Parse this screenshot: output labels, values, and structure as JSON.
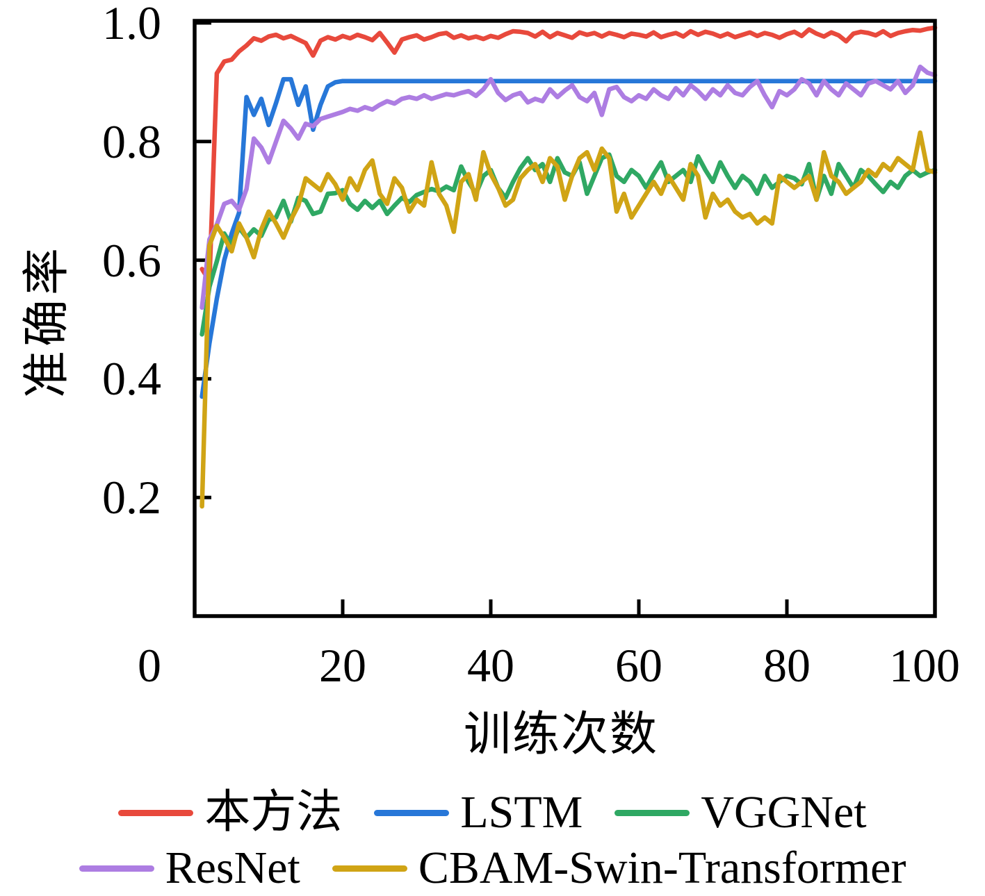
{
  "figure": {
    "background": "#ffffff",
    "axis_color": "#000000",
    "text_color": "#000000"
  },
  "chart_data": {
    "type": "line",
    "title": "",
    "xlabel": "训练次数",
    "ylabel": "准确率",
    "xlim": [
      0,
      100
    ],
    "ylim": [
      0,
      1.0
    ],
    "grid": false,
    "legend_position": "below-chart, two rows, no frame",
    "x_ticks": [
      0,
      20,
      40,
      60,
      80,
      100
    ],
    "x_tick_labels": [
      "0",
      "20",
      "40",
      "60",
      "80",
      "100"
    ],
    "x_tick_label_dx": [
      -65,
      0,
      0,
      0,
      0,
      -15
    ],
    "y_ticks": [
      0.2,
      0.4,
      0.6,
      0.8,
      1.0
    ],
    "y_tick_labels": [
      "0.2",
      "0.4",
      "0.6",
      "0.8",
      "1.0"
    ],
    "x_start": 1,
    "x_step": 1,
    "series": [
      {
        "name": "本方法",
        "color": "#e8493c",
        "values": [
          0.585,
          0.565,
          0.915,
          0.935,
          0.938,
          0.952,
          0.962,
          0.974,
          0.97,
          0.977,
          0.98,
          0.974,
          0.978,
          0.972,
          0.966,
          0.945,
          0.97,
          0.976,
          0.972,
          0.978,
          0.974,
          0.98,
          0.976,
          0.971,
          0.983,
          0.967,
          0.95,
          0.972,
          0.976,
          0.979,
          0.972,
          0.976,
          0.981,
          0.983,
          0.975,
          0.979,
          0.974,
          0.977,
          0.973,
          0.978,
          0.975,
          0.981,
          0.986,
          0.985,
          0.983,
          0.977,
          0.985,
          0.976,
          0.983,
          0.979,
          0.975,
          0.984,
          0.98,
          0.983,
          0.977,
          0.983,
          0.98,
          0.976,
          0.982,
          0.98,
          0.977,
          0.984,
          0.976,
          0.98,
          0.983,
          0.977,
          0.986,
          0.98,
          0.985,
          0.982,
          0.977,
          0.982,
          0.976,
          0.98,
          0.984,
          0.978,
          0.983,
          0.98,
          0.975,
          0.981,
          0.985,
          0.978,
          0.989,
          0.982,
          0.977,
          0.984,
          0.979,
          0.969,
          0.982,
          0.985,
          0.983,
          0.979,
          0.986,
          0.978,
          0.983,
          0.986,
          0.988,
          0.987,
          0.99,
          0.992
        ]
      },
      {
        "name": "LSTM",
        "color": "#2777d8",
        "values": [
          0.37,
          0.46,
          0.535,
          0.6,
          0.645,
          0.68,
          0.875,
          0.845,
          0.872,
          0.828,
          0.865,
          0.905,
          0.905,
          0.862,
          0.893,
          0.82,
          0.862,
          0.893,
          0.9,
          0.902,
          0.902,
          0.902,
          0.902,
          0.902,
          0.902,
          0.902,
          0.902,
          0.902,
          0.902,
          0.902,
          0.902,
          0.902,
          0.902,
          0.902,
          0.902,
          0.902,
          0.902,
          0.902,
          0.902,
          0.902,
          0.902,
          0.902,
          0.902,
          0.902,
          0.902,
          0.902,
          0.902,
          0.902,
          0.902,
          0.902,
          0.902,
          0.902,
          0.902,
          0.902,
          0.902,
          0.902,
          0.902,
          0.902,
          0.902,
          0.902,
          0.902,
          0.902,
          0.902,
          0.902,
          0.902,
          0.902,
          0.902,
          0.902,
          0.902,
          0.902,
          0.902,
          0.902,
          0.902,
          0.902,
          0.902,
          0.902,
          0.902,
          0.902,
          0.902,
          0.902,
          0.902,
          0.902,
          0.902,
          0.902,
          0.902,
          0.902,
          0.902,
          0.902,
          0.902,
          0.902,
          0.902,
          0.902,
          0.902,
          0.902,
          0.902,
          0.902,
          0.902,
          0.902,
          0.902,
          0.902
        ]
      },
      {
        "name": "VGGNet",
        "color": "#2fa863",
        "values": [
          0.475,
          0.555,
          0.598,
          0.645,
          0.625,
          0.655,
          0.638,
          0.652,
          0.641,
          0.668,
          0.672,
          0.7,
          0.665,
          0.705,
          0.7,
          0.678,
          0.682,
          0.712,
          0.713,
          0.718,
          0.695,
          0.685,
          0.7,
          0.688,
          0.7,
          0.678,
          0.692,
          0.705,
          0.698,
          0.71,
          0.715,
          0.72,
          0.716,
          0.724,
          0.718,
          0.758,
          0.732,
          0.712,
          0.742,
          0.752,
          0.722,
          0.705,
          0.732,
          0.755,
          0.772,
          0.752,
          0.762,
          0.732,
          0.772,
          0.748,
          0.742,
          0.765,
          0.712,
          0.742,
          0.772,
          0.778,
          0.742,
          0.732,
          0.752,
          0.742,
          0.722,
          0.745,
          0.765,
          0.732,
          0.742,
          0.752,
          0.732,
          0.775,
          0.752,
          0.732,
          0.765,
          0.742,
          0.722,
          0.742,
          0.732,
          0.712,
          0.742,
          0.722,
          0.732,
          0.742,
          0.738,
          0.728,
          0.762,
          0.702,
          0.742,
          0.712,
          0.762,
          0.742,
          0.722,
          0.752,
          0.742,
          0.728,
          0.715,
          0.732,
          0.722,
          0.742,
          0.752,
          0.742,
          0.748,
          0.752
        ]
      },
      {
        "name": "ResNet",
        "color": "#ad7de2",
        "values": [
          0.52,
          0.635,
          0.66,
          0.695,
          0.7,
          0.685,
          0.72,
          0.805,
          0.79,
          0.765,
          0.8,
          0.835,
          0.822,
          0.805,
          0.83,
          0.826,
          0.838,
          0.842,
          0.846,
          0.85,
          0.855,
          0.852,
          0.858,
          0.854,
          0.862,
          0.868,
          0.864,
          0.872,
          0.875,
          0.872,
          0.878,
          0.872,
          0.876,
          0.88,
          0.878,
          0.882,
          0.885,
          0.877,
          0.888,
          0.905,
          0.882,
          0.87,
          0.878,
          0.882,
          0.866,
          0.872,
          0.868,
          0.888,
          0.875,
          0.886,
          0.895,
          0.875,
          0.868,
          0.882,
          0.845,
          0.888,
          0.892,
          0.875,
          0.868,
          0.878,
          0.872,
          0.888,
          0.878,
          0.872,
          0.89,
          0.878,
          0.895,
          0.885,
          0.872,
          0.888,
          0.878,
          0.895,
          0.882,
          0.878,
          0.892,
          0.902,
          0.878,
          0.858,
          0.885,
          0.878,
          0.888,
          0.905,
          0.898,
          0.878,
          0.902,
          0.888,
          0.878,
          0.898,
          0.888,
          0.878,
          0.898,
          0.902,
          0.895,
          0.888,
          0.902,
          0.882,
          0.895,
          0.926,
          0.916,
          0.912
        ]
      },
      {
        "name": "CBAM-Swin-Transformer",
        "color": "#d0a415",
        "values": [
          0.185,
          0.625,
          0.658,
          0.638,
          0.615,
          0.662,
          0.638,
          0.605,
          0.652,
          0.682,
          0.662,
          0.638,
          0.668,
          0.692,
          0.738,
          0.728,
          0.718,
          0.745,
          0.728,
          0.702,
          0.738,
          0.718,
          0.752,
          0.768,
          0.712,
          0.695,
          0.738,
          0.722,
          0.682,
          0.702,
          0.692,
          0.765,
          0.712,
          0.692,
          0.648,
          0.732,
          0.745,
          0.702,
          0.782,
          0.745,
          0.722,
          0.692,
          0.702,
          0.738,
          0.752,
          0.762,
          0.732,
          0.772,
          0.758,
          0.702,
          0.742,
          0.772,
          0.782,
          0.752,
          0.788,
          0.772,
          0.682,
          0.712,
          0.672,
          0.692,
          0.712,
          0.732,
          0.712,
          0.742,
          0.722,
          0.702,
          0.762,
          0.742,
          0.672,
          0.712,
          0.692,
          0.702,
          0.682,
          0.672,
          0.678,
          0.662,
          0.672,
          0.662,
          0.742,
          0.732,
          0.722,
          0.732,
          0.742,
          0.702,
          0.782,
          0.742,
          0.732,
          0.712,
          0.722,
          0.732,
          0.752,
          0.742,
          0.762,
          0.752,
          0.772,
          0.762,
          0.752,
          0.815,
          0.752,
          0.748
        ]
      }
    ],
    "legend_rows": [
      [
        0,
        1,
        2
      ],
      [
        3,
        4
      ]
    ]
  }
}
